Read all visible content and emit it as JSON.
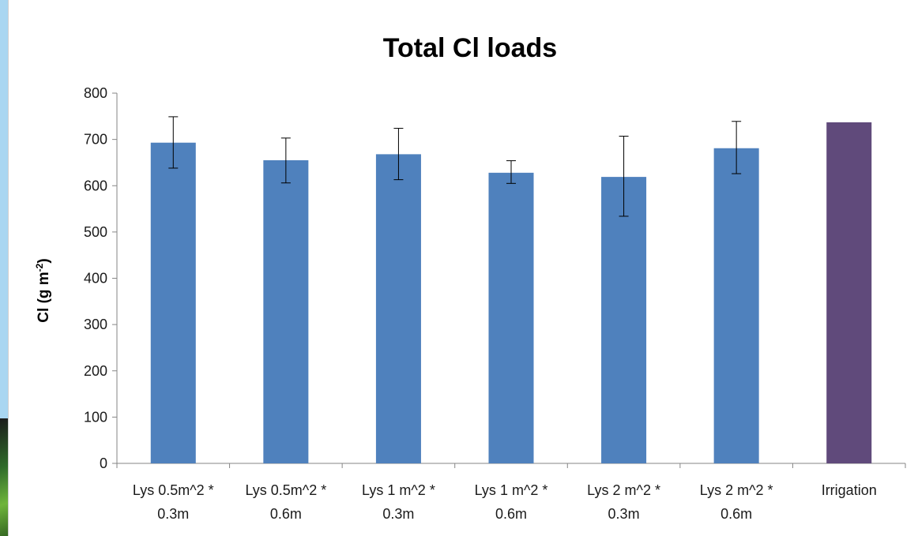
{
  "chart_data": {
    "type": "bar",
    "title": "Total Cl loads",
    "xlabel": "",
    "ylabel": "Cl (g m-2)",
    "ylabel_parts": {
      "main": "Cl (g m",
      "sup": "-2",
      "close": ")"
    },
    "ylim": [
      0,
      800
    ],
    "yticks": [
      0,
      100,
      200,
      300,
      400,
      500,
      600,
      700,
      800
    ],
    "grid": false,
    "categories": [
      [
        "Lys 0.5m^2 *",
        "0.3m"
      ],
      [
        "Lys 0.5m^2 *",
        "0.6m"
      ],
      [
        "Lys 1 m^2 *",
        "0.3m"
      ],
      [
        "Lys 1 m^2 *",
        "0.6m"
      ],
      [
        "Lys 2 m^2 *",
        "0.3m"
      ],
      [
        "Lys 2 m^2 *",
        "0.6m"
      ],
      [
        "Irrigation"
      ]
    ],
    "values": [
      693,
      655,
      668,
      628,
      619,
      681,
      737
    ],
    "error_low": [
      638,
      606,
      613,
      605,
      534,
      626,
      null
    ],
    "error_high": [
      749,
      703,
      724,
      654,
      707,
      739,
      null
    ],
    "colors": [
      "#4f81bd",
      "#4f81bd",
      "#4f81bd",
      "#4f81bd",
      "#4f81bd",
      "#4f81bd",
      "#604a7b"
    ]
  }
}
